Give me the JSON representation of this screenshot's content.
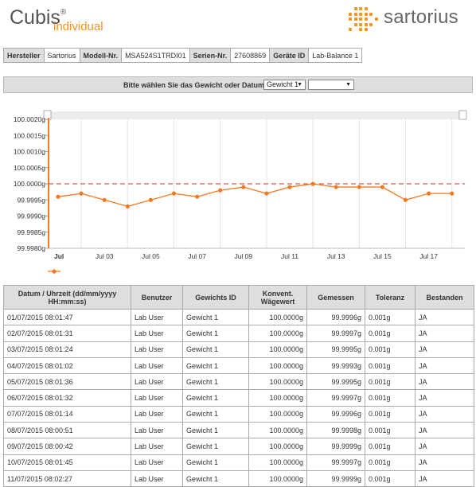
{
  "brand": {
    "name": "Cubis",
    "reg": "®",
    "sub": "individual"
  },
  "logo": {
    "word": "sartorius",
    "color": "#f7941d"
  },
  "info": [
    {
      "label": "Hersteller",
      "value": "Sartorius"
    },
    {
      "label": "Modell-Nr.",
      "value": "MSA524S1TRDI01"
    },
    {
      "label": "Serien-Nr.",
      "value": "27608869"
    },
    {
      "label": "Geräte ID",
      "value": "Lab-Balance 1"
    }
  ],
  "selector": {
    "label": "Bitte wählen Sie das Gewicht oder Datum",
    "weight_value": "Gewicht 1",
    "date_value": ""
  },
  "chart_data": {
    "type": "line",
    "x": [
      "01/07/2015",
      "02/07/2015",
      "03/07/2015",
      "04/07/2015",
      "05/07/2015",
      "06/07/2015",
      "07/07/2015",
      "08/07/2015",
      "09/07/2015",
      "10/07/2015",
      "11/07/2015",
      "12/07/2015",
      "13/07/2015",
      "14/07/2015",
      "15/07/2015",
      "16/07/2015",
      "17/07/2015",
      "18/07/2015"
    ],
    "series": [
      {
        "values": [
          99.9996,
          99.9997,
          99.9995,
          99.9993,
          99.9995,
          99.9997,
          99.9996,
          99.9998,
          99.9999,
          99.9997,
          99.9999,
          100.0,
          99.9999,
          99.9999,
          99.9999,
          99.9995,
          99.9997,
          99.9997
        ],
        "color": "#f47920"
      }
    ],
    "reference_line": {
      "value": 100.0,
      "color": "#d9534f",
      "style": "dashed"
    },
    "ylim": [
      99.998,
      100.002
    ],
    "yticks": [
      "100.0020g",
      "100.0015g",
      "100.0010g",
      "100.0005g",
      "100.0000g",
      "99.9995g",
      "99.9990g",
      "99.9985g",
      "99.9980g"
    ],
    "xticks": [
      "Jul",
      "Jul 03",
      "Jul 05",
      "Jul 07",
      "Jul 09",
      "Jul 11",
      "Jul 13",
      "Jul 15",
      "Jul 17"
    ],
    "xtick_index": [
      0,
      2,
      4,
      6,
      8,
      10,
      12,
      14,
      16
    ],
    "grid": "vertical",
    "legend": "bottom-left"
  },
  "table": {
    "headers": [
      "Datum / Uhrzeit (dd/mm/yyyy HH:mm:ss)",
      "Benutzer",
      "Gewichts ID",
      "Konvent. Wägewert",
      "Gemessen",
      "Toleranz",
      "Bestanden"
    ],
    "rows": [
      [
        "01/07/2015 08:01:47",
        "Lab User",
        "Gewicht 1",
        "100.0000g",
        "99.9996g",
        "0.001g",
        "JA"
      ],
      [
        "02/07/2015 08:01:31",
        "Lab User",
        "Gewicht 1",
        "100.0000g",
        "99.9997g",
        "0.001g",
        "JA"
      ],
      [
        "03/07/2015 08:01:24",
        "Lab User",
        "Gewicht 1",
        "100.0000g",
        "99.9995g",
        "0.001g",
        "JA"
      ],
      [
        "04/07/2015 08:01:02",
        "Lab User",
        "Gewicht 1",
        "100.0000g",
        "99.9993g",
        "0.001g",
        "JA"
      ],
      [
        "05/07/2015 08:01:36",
        "Lab User",
        "Gewicht 1",
        "100.0000g",
        "99.9995g",
        "0.001g",
        "JA"
      ],
      [
        "06/07/2015 08:01:32",
        "Lab User",
        "Gewicht 1",
        "100.0000g",
        "99.9997g",
        "0.001g",
        "JA"
      ],
      [
        "07/07/2015 08:01:14",
        "Lab User",
        "Gewicht 1",
        "100.0000g",
        "99.9996g",
        "0.001g",
        "JA"
      ],
      [
        "08/07/2015 08:00:51",
        "Lab User",
        "Gewicht 1",
        "100.0000g",
        "99.9998g",
        "0.001g",
        "JA"
      ],
      [
        "09/07/2015 08:00:42",
        "Lab User",
        "Gewicht 1",
        "100.0000g",
        "99.9999g",
        "0.001g",
        "JA"
      ],
      [
        "10/07/2015 08:01:45",
        "Lab User",
        "Gewicht 1",
        "100.0000g",
        "99.9997g",
        "0.001g",
        "JA"
      ],
      [
        "11/07/2015 08:02:27",
        "Lab User",
        "Gewicht 1",
        "100.0000g",
        "99.9999g",
        "0.001g",
        "JA"
      ]
    ]
  }
}
